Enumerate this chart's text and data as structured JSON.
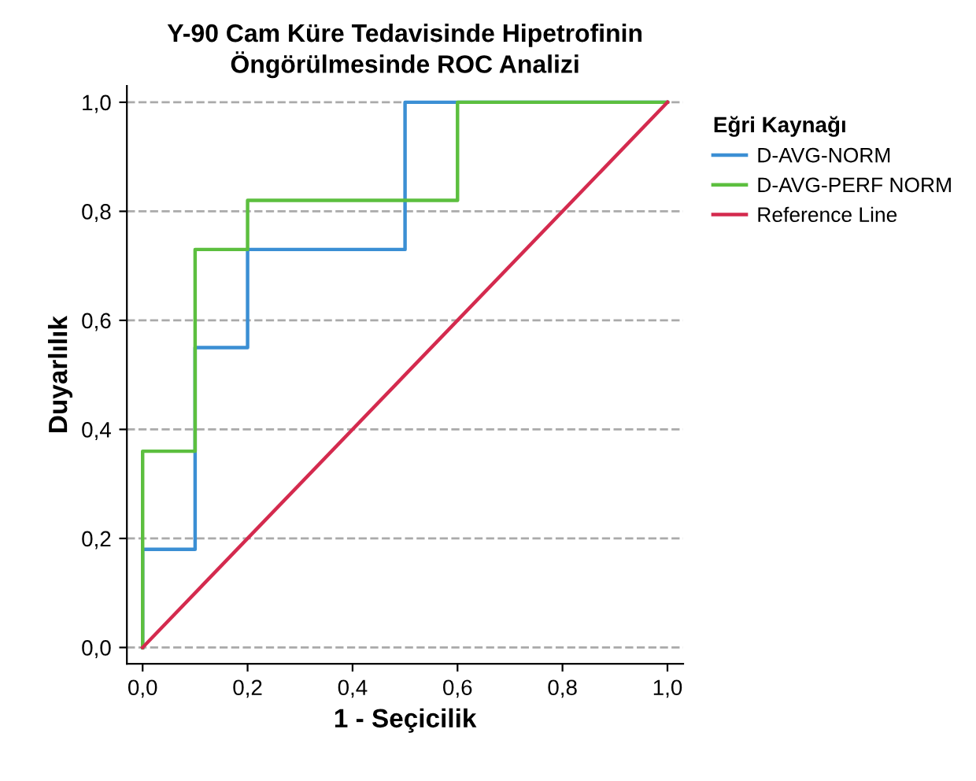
{
  "chart_data": {
    "type": "step",
    "title": "Y-90 Cam Küre Tedavisinde Hipetrofinin\nÖngörülmesinde ROC Analizi",
    "xlabel": "1 - Seçicilik",
    "ylabel": "Duyarlılık",
    "legend_title": "Eğri Kaynağı",
    "series": [
      {
        "name": "D-AVG-NORM",
        "color": "#3b8fd4",
        "x": [
          0,
          0.1,
          0.2,
          0.5,
          1
        ],
        "values": [
          0,
          0.18,
          0.55,
          0.73,
          1
        ]
      },
      {
        "name": "D-AVG-PERF NORM",
        "color": "#5cbf3f",
        "x": [
          0,
          0.1,
          0.2,
          0.6,
          1
        ],
        "values": [
          0,
          0.36,
          0.73,
          0.82,
          1
        ]
      },
      {
        "name": "Reference Line",
        "type": "line",
        "color": "#d42a4e",
        "x": [
          0,
          1
        ],
        "values": [
          0,
          1
        ]
      }
    ],
    "xlim": [
      -0.03,
      1.03
    ],
    "ylim": [
      -0.03,
      1.03
    ],
    "xticks": [
      {
        "value": 0,
        "label": "0,0"
      },
      {
        "value": 0.2,
        "label": "0,2"
      },
      {
        "value": 0.4,
        "label": "0,4"
      },
      {
        "value": 0.6,
        "label": "0,6"
      },
      {
        "value": 0.8,
        "label": "0,8"
      },
      {
        "value": 1,
        "label": "1,0"
      }
    ],
    "yticks": [
      {
        "value": 0,
        "label": "0,0"
      },
      {
        "value": 0.2,
        "label": "0,2"
      },
      {
        "value": 0.4,
        "label": "0,4"
      },
      {
        "value": 0.6,
        "label": "0,6"
      },
      {
        "value": 0.8,
        "label": "0,8"
      },
      {
        "value": 1,
        "label": "1,0"
      }
    ],
    "grid": "y",
    "legend": "right"
  }
}
